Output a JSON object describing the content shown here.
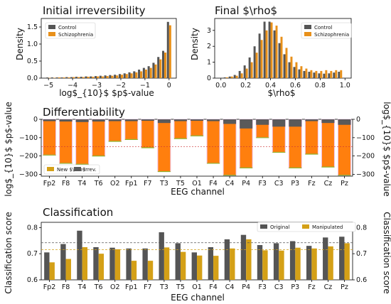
{
  "chart_data": [
    {
      "type": "bar",
      "title": "Initial irreversibility",
      "xlabel": "log$_{10}$ $p$-value",
      "ylabel": "Density",
      "xlim": [
        -5.3,
        0.3
      ],
      "ylim": [
        0,
        1.75
      ],
      "xticks": [
        -5,
        -4,
        -3,
        -2,
        -1,
        0
      ],
      "xtick_labels": [
        "−5",
        "−4",
        "−3",
        "−2",
        "−1",
        "0"
      ],
      "yticks": [
        0.0,
        0.5,
        1.0,
        1.5
      ],
      "ytick_labels": [
        "0.0",
        "0.5",
        "1.0",
        "1.5"
      ],
      "legend_position": "top-left",
      "x": [
        -5.0,
        -4.8,
        -4.6,
        -4.4,
        -4.2,
        -4.0,
        -3.8,
        -3.6,
        -3.4,
        -3.2,
        -3.0,
        -2.8,
        -2.6,
        -2.4,
        -2.2,
        -2.0,
        -1.8,
        -1.6,
        -1.4,
        -1.2,
        -1.0,
        -0.8,
        -0.6,
        -0.4,
        -0.2,
        0.0
      ],
      "series": [
        {
          "name": "Control",
          "color": "#555555",
          "values": [
            0.02,
            0.02,
            0.02,
            0.02,
            0.03,
            0.03,
            0.04,
            0.04,
            0.05,
            0.05,
            0.06,
            0.07,
            0.08,
            0.09,
            0.1,
            0.12,
            0.14,
            0.17,
            0.2,
            0.25,
            0.3,
            0.35,
            0.45,
            0.62,
            0.8,
            1.65
          ]
        },
        {
          "name": "Schizophrenia",
          "color": "#e8901a",
          "values": [
            0.01,
            0.01,
            0.02,
            0.02,
            0.02,
            0.03,
            0.03,
            0.03,
            0.04,
            0.04,
            0.05,
            0.05,
            0.06,
            0.07,
            0.08,
            0.1,
            0.12,
            0.14,
            0.17,
            0.2,
            0.25,
            0.3,
            0.4,
            0.55,
            0.75,
            1.55
          ]
        }
      ]
    },
    {
      "type": "bar",
      "title": "Final $\\rho$",
      "xlabel": "$\\rho$",
      "ylabel": "Density",
      "xlim": [
        -0.05,
        1.05
      ],
      "ylim": [
        0,
        3.75
      ],
      "xticks": [
        0.0,
        0.2,
        0.4,
        0.6,
        0.8,
        1.0
      ],
      "xtick_labels": [
        "0.0",
        "0.2",
        "0.4",
        "0.6",
        "0.8",
        "1.0"
      ],
      "yticks": [
        0,
        1,
        2,
        3
      ],
      "ytick_labels": [
        "0",
        "1",
        "2",
        "3"
      ],
      "legend_position": "top-right",
      "x": [
        0.04,
        0.08,
        0.12,
        0.16,
        0.2,
        0.24,
        0.28,
        0.32,
        0.36,
        0.4,
        0.44,
        0.48,
        0.52,
        0.56,
        0.6,
        0.64,
        0.68,
        0.72,
        0.76,
        0.8,
        0.84,
        0.88,
        0.92,
        0.96
      ],
      "series": [
        {
          "name": "Control",
          "color": "#555555",
          "values": [
            0.05,
            0.1,
            0.2,
            0.45,
            0.8,
            1.3,
            2.0,
            2.8,
            3.55,
            3.55,
            3.0,
            2.2,
            1.5,
            1.0,
            0.7,
            0.55,
            0.45,
            0.4,
            0.35,
            0.3,
            0.28,
            0.3,
            0.35,
            0.4
          ]
        },
        {
          "name": "Schizophrenia",
          "color": "#e8901a",
          "values": [
            0.05,
            0.1,
            0.15,
            0.3,
            0.6,
            1.0,
            1.6,
            2.4,
            3.0,
            3.5,
            3.3,
            2.6,
            1.9,
            1.35,
            1.0,
            0.75,
            0.6,
            0.5,
            0.45,
            0.45,
            0.5,
            0.45,
            0.5,
            0.5
          ]
        }
      ]
    },
    {
      "type": "bar",
      "title": "Differentiability",
      "xlabel": "EEG channel",
      "ylabel": "log$_{10}$ $p$-value",
      "ylabel_right": "log$_{10}$ $p$-value",
      "ylim": [
        -310,
        0
      ],
      "yticks": [
        0,
        -100,
        -200,
        -300
      ],
      "ytick_labels": [
        "0",
        "−100",
        "−200",
        "−300"
      ],
      "ytick_labels_right": [
        "0",
        "−100",
        "−200",
        "−300"
      ],
      "legend_position": "bottom-left",
      "categories": [
        "Fp2",
        "F8",
        "T4",
        "T6",
        "O2",
        "Fp1",
        "F7",
        "T3",
        "T5",
        "O1",
        "F4",
        "C4",
        "P4",
        "F3",
        "C3",
        "P3",
        "Fz",
        "Cz",
        "Pz"
      ],
      "series": [
        {
          "name": "New $\\rho$",
          "color": "#ff7f0e",
          "values": [
            -195,
            -240,
            -245,
            -200,
            -120,
            -110,
            -155,
            -285,
            -105,
            -90,
            -240,
            -305,
            -265,
            -100,
            -180,
            -265,
            -190,
            -260,
            -305
          ]
        },
        {
          "name": "Irrev.",
          "color": "#5a5a5a",
          "values": [
            -10,
            -12,
            -15,
            -12,
            -10,
            -10,
            -8,
            -20,
            -10,
            -8,
            -10,
            -25,
            -50,
            -30,
            -40,
            -40,
            -10,
            -20,
            -30
          ]
        }
      ],
      "reference_line": -150
    },
    {
      "type": "bar",
      "title": "Classification",
      "xlabel": "EEG channel",
      "ylabel": "Classification score",
      "ylabel_right": "Classification score",
      "ylim": [
        0.6,
        0.82
      ],
      "yticks": [
        0.6,
        0.7,
        0.8
      ],
      "ytick_labels": [
        "0.6",
        "0.7",
        "0.8"
      ],
      "legend_position": "top-right",
      "categories": [
        "Fp2",
        "F8",
        "T4",
        "T6",
        "O2",
        "Fp1",
        "F7",
        "T3",
        "T5",
        "O1",
        "F4",
        "C4",
        "P4",
        "F3",
        "C3",
        "P3",
        "Fz",
        "Cz",
        "Pz"
      ],
      "series": [
        {
          "name": "Original",
          "color": "#555555",
          "values": [
            0.705,
            0.737,
            0.788,
            0.725,
            0.723,
            0.72,
            0.72,
            0.782,
            0.74,
            0.705,
            0.725,
            0.755,
            0.772,
            0.733,
            0.74,
            0.748,
            0.73,
            0.762,
            0.765
          ]
        },
        {
          "name": "Manipulated",
          "color": "#d4a017",
          "values": [
            0.667,
            0.68,
            0.725,
            0.7,
            0.717,
            0.673,
            0.673,
            0.724,
            0.707,
            0.693,
            0.692,
            0.72,
            0.755,
            0.713,
            0.712,
            0.723,
            0.72,
            0.728,
            0.74
          ]
        }
      ],
      "hlines": [
        {
          "value": 0.742,
          "color": "#555555"
        },
        {
          "value": 0.715,
          "color": "#d4a017"
        }
      ]
    }
  ]
}
